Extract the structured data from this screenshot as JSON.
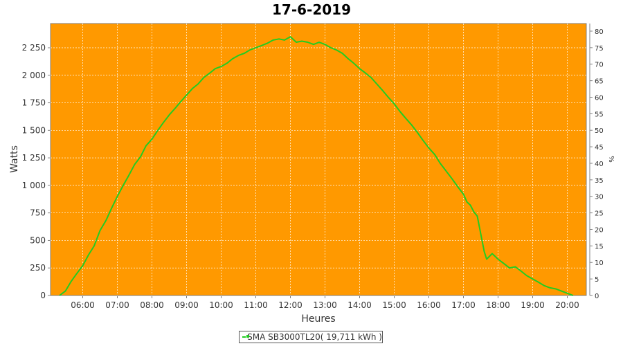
{
  "chart_data": {
    "type": "line",
    "title": "17-6-2019",
    "xlabel": "Heures",
    "ylabel": "Watts",
    "y2label": "%",
    "xlim": [
      5.07,
      20.55
    ],
    "ylim": [
      0,
      2470
    ],
    "y2lim": [
      0,
      82.3
    ],
    "x_ticks": [
      6,
      7,
      8,
      9,
      10,
      11,
      12,
      13,
      14,
      15,
      16,
      17,
      18,
      19,
      20
    ],
    "x_tick_labels": [
      "06:00",
      "07:00",
      "08:00",
      "09:00",
      "10:00",
      "11:00",
      "12:00",
      "13:00",
      "14:00",
      "15:00",
      "16:00",
      "17:00",
      "18:00",
      "19:00",
      "20:00"
    ],
    "y_ticks": [
      0,
      250,
      500,
      750,
      1000,
      1250,
      1500,
      1750,
      2000,
      2250
    ],
    "y_tick_labels": [
      "0",
      "250",
      "500",
      "750",
      "1 000",
      "1 250",
      "1 500",
      "1 750",
      "2 000",
      "2 250"
    ],
    "y2_ticks": [
      0,
      5,
      10,
      15,
      20,
      25,
      30,
      35,
      40,
      45,
      50,
      55,
      60,
      65,
      70,
      75,
      80
    ],
    "grid": true,
    "background": "#ff9900",
    "legend_position": "bottom",
    "series": [
      {
        "name": "SMA SB3000TL20( 19,711 kWh )",
        "color": "#22cc22",
        "points": [
          [
            5.33,
            0
          ],
          [
            5.5,
            40
          ],
          [
            5.67,
            130
          ],
          [
            5.83,
            200
          ],
          [
            6.0,
            270
          ],
          [
            6.17,
            370
          ],
          [
            6.33,
            450
          ],
          [
            6.5,
            590
          ],
          [
            6.67,
            680
          ],
          [
            6.83,
            790
          ],
          [
            7.0,
            900
          ],
          [
            7.17,
            1000
          ],
          [
            7.33,
            1090
          ],
          [
            7.5,
            1190
          ],
          [
            7.67,
            1260
          ],
          [
            7.83,
            1360
          ],
          [
            8.0,
            1420
          ],
          [
            8.17,
            1500
          ],
          [
            8.33,
            1570
          ],
          [
            8.5,
            1640
          ],
          [
            8.67,
            1700
          ],
          [
            8.83,
            1760
          ],
          [
            9.0,
            1820
          ],
          [
            9.17,
            1880
          ],
          [
            9.33,
            1920
          ],
          [
            9.5,
            1980
          ],
          [
            9.67,
            2020
          ],
          [
            9.83,
            2060
          ],
          [
            10.0,
            2080
          ],
          [
            10.17,
            2110
          ],
          [
            10.33,
            2150
          ],
          [
            10.5,
            2180
          ],
          [
            10.67,
            2200
          ],
          [
            10.83,
            2230
          ],
          [
            11.0,
            2250
          ],
          [
            11.17,
            2270
          ],
          [
            11.33,
            2290
          ],
          [
            11.5,
            2320
          ],
          [
            11.67,
            2330
          ],
          [
            11.83,
            2320
          ],
          [
            12.0,
            2350
          ],
          [
            12.17,
            2300
          ],
          [
            12.33,
            2310
          ],
          [
            12.5,
            2300
          ],
          [
            12.67,
            2280
          ],
          [
            12.83,
            2300
          ],
          [
            13.0,
            2280
          ],
          [
            13.17,
            2250
          ],
          [
            13.33,
            2230
          ],
          [
            13.5,
            2200
          ],
          [
            13.67,
            2150
          ],
          [
            13.83,
            2110
          ],
          [
            14.0,
            2060
          ],
          [
            14.17,
            2020
          ],
          [
            14.33,
            1980
          ],
          [
            14.5,
            1920
          ],
          [
            14.67,
            1860
          ],
          [
            14.83,
            1800
          ],
          [
            15.0,
            1740
          ],
          [
            15.17,
            1670
          ],
          [
            15.33,
            1610
          ],
          [
            15.5,
            1550
          ],
          [
            15.67,
            1480
          ],
          [
            15.83,
            1410
          ],
          [
            16.0,
            1340
          ],
          [
            16.17,
            1280
          ],
          [
            16.33,
            1200
          ],
          [
            16.5,
            1130
          ],
          [
            16.67,
            1060
          ],
          [
            16.83,
            990
          ],
          [
            17.0,
            920
          ],
          [
            17.1,
            850
          ],
          [
            17.2,
            820
          ],
          [
            17.3,
            760
          ],
          [
            17.4,
            720
          ],
          [
            17.5,
            560
          ],
          [
            17.6,
            400
          ],
          [
            17.67,
            330
          ],
          [
            17.83,
            380
          ],
          [
            18.0,
            330
          ],
          [
            18.17,
            290
          ],
          [
            18.33,
            250
          ],
          [
            18.5,
            260
          ],
          [
            18.67,
            220
          ],
          [
            18.83,
            180
          ],
          [
            19.0,
            150
          ],
          [
            19.17,
            120
          ],
          [
            19.33,
            90
          ],
          [
            19.5,
            70
          ],
          [
            19.67,
            60
          ],
          [
            19.83,
            40
          ],
          [
            20.0,
            20
          ],
          [
            20.17,
            0
          ]
        ]
      }
    ]
  }
}
